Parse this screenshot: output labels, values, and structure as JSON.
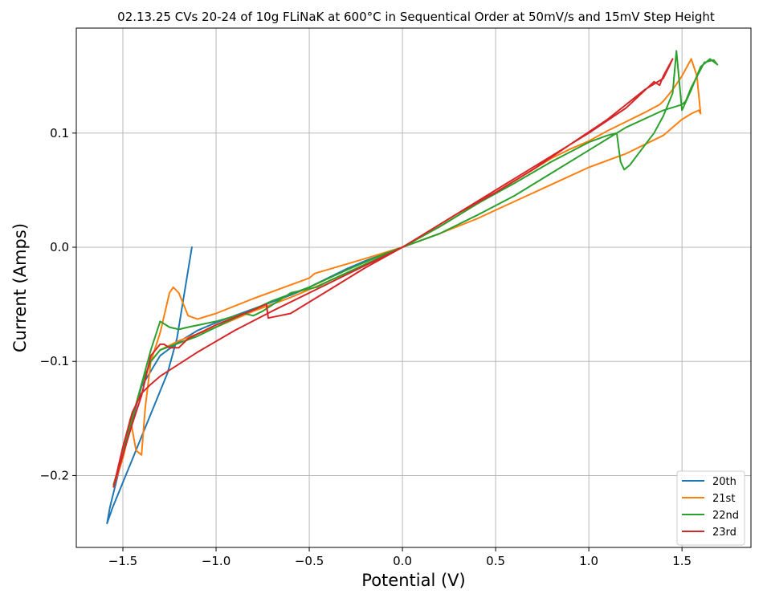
{
  "chart_data": {
    "type": "line",
    "title": "02.13.25 CVs 20-24 of 10g FLiNaK at 600°C in Sequentical Order at 50mV/s and 15mV Step Height",
    "xlabel": "Potential (V)",
    "ylabel": "Current (Amps)",
    "xlim": [
      -1.75,
      1.87
    ],
    "ylim": [
      -0.263,
      0.192
    ],
    "xticks": [
      -1.5,
      -1.0,
      -0.5,
      0.0,
      0.5,
      1.0,
      1.5
    ],
    "xtick_labels": [
      "−1.5",
      "−1.0",
      "−0.5",
      "0.0",
      "0.5",
      "1.0",
      "1.5"
    ],
    "yticks": [
      -0.2,
      -0.1,
      0.0,
      0.1
    ],
    "ytick_labels": [
      "−0.2",
      "−0.1",
      "0.0",
      "0.1"
    ],
    "grid": true,
    "legend_position": "lower right",
    "series": [
      {
        "name": "20th",
        "color": "#1f77b4",
        "x": [
          -1.13,
          -1.17,
          -1.21,
          -1.26,
          -1.31,
          -1.36,
          -1.41,
          -1.46,
          -1.51,
          -1.555,
          -1.585,
          -1.57,
          -1.5,
          -1.4,
          -1.3,
          -1.2,
          -1.1,
          -1.0,
          -0.9,
          -0.8,
          -0.7,
          -0.6,
          -0.5,
          -0.4,
          -0.3,
          -0.2,
          -0.1,
          0.0
        ],
        "y": [
          0.0,
          -0.04,
          -0.08,
          -0.11,
          -0.13,
          -0.15,
          -0.17,
          -0.19,
          -0.21,
          -0.228,
          -0.242,
          -0.228,
          -0.182,
          -0.122,
          -0.095,
          -0.083,
          -0.073,
          -0.066,
          -0.06,
          -0.054,
          -0.048,
          -0.042,
          -0.035,
          -0.027,
          -0.019,
          -0.012,
          -0.006,
          0.0
        ]
      },
      {
        "name": "21st",
        "color": "#ff7f0e",
        "x": [
          0.0,
          0.2,
          0.4,
          0.6,
          0.8,
          0.9,
          1.0,
          1.1,
          1.2,
          1.3,
          1.38,
          1.4,
          1.45,
          1.5,
          1.55,
          1.58,
          1.6,
          1.59,
          1.55,
          1.5,
          1.4,
          1.2,
          1.0,
          0.8,
          0.6,
          0.4,
          0.2,
          0.0,
          -0.2,
          -0.47,
          -0.5,
          -0.6,
          -0.8,
          -1.0,
          -1.1,
          -1.15,
          -1.2,
          -1.23,
          -1.25,
          -1.3,
          -1.35,
          -1.38,
          -1.4,
          -1.43,
          -1.46,
          -1.5,
          -1.55,
          -1.5,
          -1.45,
          -1.4,
          -1.35,
          -1.3,
          -1.2,
          -1.0,
          -0.8,
          -0.6,
          -0.4,
          -0.2,
          0.0
        ],
        "y": [
          0.0,
          0.018,
          0.038,
          0.058,
          0.078,
          0.086,
          0.093,
          0.102,
          0.11,
          0.118,
          0.125,
          0.128,
          0.138,
          0.15,
          0.165,
          0.15,
          0.117,
          0.12,
          0.117,
          0.112,
          0.098,
          0.082,
          0.07,
          0.055,
          0.04,
          0.025,
          0.012,
          0.0,
          -0.01,
          -0.023,
          -0.027,
          -0.033,
          -0.045,
          -0.058,
          -0.063,
          -0.06,
          -0.04,
          -0.035,
          -0.04,
          -0.075,
          -0.1,
          -0.14,
          -0.182,
          -0.178,
          -0.15,
          -0.18,
          -0.21,
          -0.185,
          -0.15,
          -0.12,
          -0.1,
          -0.09,
          -0.082,
          -0.07,
          -0.056,
          -0.044,
          -0.03,
          -0.015,
          0.0
        ]
      },
      {
        "name": "22nd",
        "color": "#2ca02c",
        "x": [
          0.0,
          0.2,
          0.4,
          0.6,
          0.8,
          1.0,
          1.1,
          1.15,
          1.17,
          1.19,
          1.22,
          1.28,
          1.35,
          1.4,
          1.45,
          1.47,
          1.5,
          1.55,
          1.6,
          1.65,
          1.69,
          1.67,
          1.62,
          1.55,
          1.52,
          1.5,
          1.4,
          1.2,
          1.0,
          0.8,
          0.6,
          0.4,
          0.2,
          0.0,
          -0.2,
          -0.4,
          -0.46,
          -0.6,
          -0.75,
          -0.8,
          -0.85,
          -1.0,
          -1.15,
          -1.2,
          -1.25,
          -1.3,
          -1.35,
          -1.4,
          -1.45,
          -1.5,
          -1.55,
          -1.5,
          -1.45,
          -1.4,
          -1.35,
          -1.3,
          -1.1,
          -0.9,
          -0.7,
          -0.5,
          -0.3,
          -0.1,
          0.0
        ],
        "y": [
          0.0,
          0.018,
          0.038,
          0.056,
          0.075,
          0.092,
          0.098,
          0.1,
          0.075,
          0.068,
          0.072,
          0.085,
          0.1,
          0.115,
          0.135,
          0.172,
          0.12,
          0.138,
          0.158,
          0.165,
          0.16,
          0.164,
          0.162,
          0.14,
          0.128,
          0.125,
          0.12,
          0.105,
          0.085,
          0.065,
          0.045,
          0.028,
          0.012,
          0.0,
          -0.015,
          -0.03,
          -0.035,
          -0.04,
          -0.056,
          -0.06,
          -0.058,
          -0.065,
          -0.07,
          -0.072,
          -0.07,
          -0.065,
          -0.09,
          -0.12,
          -0.15,
          -0.18,
          -0.208,
          -0.182,
          -0.15,
          -0.12,
          -0.1,
          -0.09,
          -0.078,
          -0.062,
          -0.047,
          -0.035,
          -0.02,
          -0.006,
          0.0
        ]
      },
      {
        "name": "23rd",
        "color": "#d62728",
        "x": [
          0.0,
          0.2,
          0.4,
          0.6,
          0.8,
          1.0,
          1.2,
          1.35,
          1.38,
          1.4,
          1.45,
          1.43,
          1.4,
          1.3,
          1.1,
          0.9,
          0.7,
          0.5,
          0.3,
          0.1,
          0.0,
          -0.2,
          -0.4,
          -0.6,
          -0.72,
          -0.73,
          -0.8,
          -1.0,
          -1.15,
          -1.2,
          -1.25,
          -1.28,
          -1.3,
          -1.35,
          -1.4,
          -1.45,
          -1.5,
          -1.55,
          -1.5,
          -1.45,
          -1.4,
          -1.35,
          -1.3,
          -1.1,
          -0.9,
          -0.7,
          -0.5,
          -0.3,
          -0.1,
          0.0
        ],
        "y": [
          0.0,
          0.02,
          0.04,
          0.06,
          0.08,
          0.1,
          0.122,
          0.145,
          0.142,
          0.15,
          0.165,
          0.158,
          0.148,
          0.138,
          0.112,
          0.09,
          0.068,
          0.048,
          0.03,
          0.01,
          0.0,
          -0.018,
          -0.038,
          -0.058,
          -0.062,
          -0.05,
          -0.055,
          -0.068,
          -0.08,
          -0.088,
          -0.088,
          -0.085,
          -0.085,
          -0.095,
          -0.13,
          -0.155,
          -0.182,
          -0.21,
          -0.175,
          -0.145,
          -0.128,
          -0.12,
          -0.113,
          -0.092,
          -0.073,
          -0.056,
          -0.04,
          -0.024,
          -0.008,
          0.0
        ]
      }
    ]
  }
}
